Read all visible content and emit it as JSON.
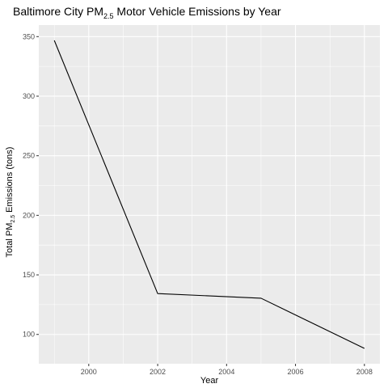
{
  "chart_data": {
    "type": "line",
    "title": {
      "prefix": "Baltimore City PM",
      "subscript": "2.5",
      "suffix": " Motor Vehicle Emissions by Year"
    },
    "xlabel": "Year",
    "ylabel": {
      "prefix": "Total PM",
      "subscript": "2.5",
      "suffix": " Emissions (tons)"
    },
    "x": [
      1999,
      2002,
      2005,
      2008
    ],
    "series": [
      {
        "values": [
          346.8,
          134.3,
          130.4,
          88.3
        ],
        "color": "#000000"
      }
    ],
    "xlim": [
      1998.55,
      2008.45
    ],
    "ylim": [
      75.4,
      359.7
    ],
    "x_ticks": [
      2000,
      2002,
      2004,
      2006,
      2008
    ],
    "x_tick_labels": [
      "2000",
      "2002",
      "2004",
      "2006",
      "2008"
    ],
    "y_ticks": [
      100,
      150,
      200,
      250,
      300,
      350
    ],
    "y_tick_labels": [
      "100",
      "150",
      "200",
      "250",
      "300",
      "350"
    ],
    "grid": true,
    "panel_background": "#ebebeb",
    "grid_color": "#ffffff"
  }
}
